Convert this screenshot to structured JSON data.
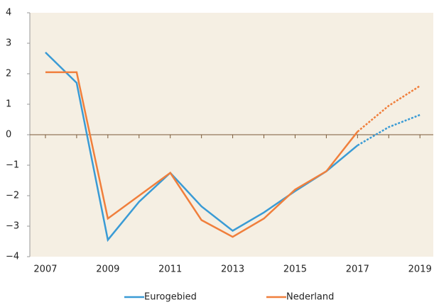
{
  "chart_data": {
    "type": "line",
    "x": [
      2007,
      2008,
      2009,
      2010,
      2011,
      2012,
      2013,
      2014,
      2015,
      2016,
      2017,
      2018,
      2019
    ],
    "series": [
      {
        "name": "Eurogebied",
        "color": "#3a9bd5",
        "values": [
          2.7,
          1.7,
          -3.45,
          -2.2,
          -1.25,
          -2.35,
          -3.15,
          -2.55,
          -1.85,
          -1.2,
          -0.35,
          0.25,
          0.65
        ]
      },
      {
        "name": "Nederland",
        "color": "#f07f3c",
        "values": [
          2.05,
          2.05,
          -2.75,
          -2.0,
          -1.25,
          -2.8,
          -3.35,
          -2.75,
          -1.8,
          -1.2,
          0.1,
          0.95,
          1.6
        ]
      }
    ],
    "forecast_start": 2017,
    "xlim": [
      2006.5,
      2019.2
    ],
    "xticks": [
      2007,
      2009,
      2011,
      2013,
      2015,
      2017,
      2019
    ],
    "ylim": [
      -4,
      4
    ],
    "yticks": [
      {
        "value": -4,
        "label": "−4"
      },
      {
        "value": -3,
        "label": "−3"
      },
      {
        "value": -2,
        "label": "−2"
      },
      {
        "value": -1,
        "label": "−1"
      },
      0,
      1,
      2,
      3,
      4
    ],
    "legend": "bottom"
  }
}
